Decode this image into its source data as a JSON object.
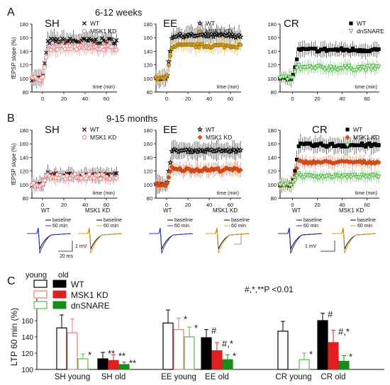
{
  "figure": {
    "panel_labels": [
      "A",
      "B",
      "C"
    ],
    "row_a_group_label": "6-12 weeks",
    "row_b_group_label": "9-15 months",
    "y_axis_label": "fEPSP slope (%)",
    "x_axis_label": "time (min)"
  },
  "trace_insets": {
    "labels": {
      "wt": "WT",
      "msk1": "MSK1 KD",
      "baseline": "baseline",
      "sixty": "60 min",
      "scale_mv": "1 mV",
      "scale_ms": "20 ms"
    },
    "groups": [
      {
        "title": "WT",
        "color": "#2b3cc8",
        "mid": 2
      },
      {
        "title": "MSK1 KD",
        "color": "#d1a020",
        "mid": 2
      },
      {
        "title": "WT",
        "color": "#2b3cc8",
        "mid": 2
      },
      {
        "title": "MSK1 KD",
        "color": "#d1a020",
        "mid": 2
      },
      {
        "title": "WT",
        "color": "#1a2cc8",
        "mid": 2
      },
      {
        "title": "MSK1 KD",
        "color": "#d1a020",
        "mid": 2
      }
    ]
  },
  "colors": {
    "wt": "#000000",
    "msk1_ltp": "#e87a7a",
    "msk1_bar": "#e02020",
    "msk1_ee_old": "#e0501a",
    "dnsnare_ltp": "#55bb4a",
    "dnsnare_bar": "#1a8c1a"
  },
  "chart_data": [
    {
      "type": "line",
      "panel": "A",
      "title": "SH",
      "x_range": [
        -10,
        70
      ],
      "ylim": [
        80,
        180
      ],
      "yticks": [
        80,
        100,
        120,
        140,
        160,
        180
      ],
      "xticks": [
        0,
        20,
        40,
        60
      ],
      "series": [
        {
          "name": "WT",
          "marker": "x",
          "color": "#000000",
          "baseline": 100,
          "plateau": 155,
          "noise": 6,
          "err": 12
        },
        {
          "name": "MSK1 KD",
          "marker": "circle-open",
          "color": "#e87a7a",
          "baseline": 100,
          "plateau": 145,
          "noise": 5,
          "err": 10
        }
      ]
    },
    {
      "type": "line",
      "panel": "A",
      "title": "EE",
      "x_range": [
        -10,
        70
      ],
      "ylim": [
        80,
        180
      ],
      "yticks": [
        80,
        100,
        120,
        140,
        160,
        180
      ],
      "xticks": [
        0,
        20,
        40,
        60
      ],
      "series": [
        {
          "name": "WT",
          "marker": "star",
          "color": "#000000",
          "baseline": 100,
          "plateau": 163,
          "noise": 4,
          "err": 12
        },
        {
          "name": "MSK1 KD",
          "marker": "circle-filled",
          "color": "#d9a020",
          "baseline": 100,
          "plateau": 148,
          "noise": 4,
          "err": 10
        }
      ]
    },
    {
      "type": "line",
      "panel": "A",
      "title": "CR",
      "x_range": [
        -10,
        70
      ],
      "ylim": [
        80,
        180
      ],
      "yticks": [
        80,
        100,
        120,
        140,
        160,
        180
      ],
      "xticks": [
        0,
        20,
        40,
        60
      ],
      "series": [
        {
          "name": "WT",
          "marker": "square",
          "color": "#000000",
          "baseline": 100,
          "plateau": 142,
          "noise": 4,
          "err": 10
        },
        {
          "name": "dnSNARE",
          "marker": "triangle-down",
          "color": "#55bb4a",
          "baseline": 100,
          "plateau": 115,
          "noise": 5,
          "err": 9
        }
      ]
    },
    {
      "type": "line",
      "panel": "B",
      "title": "SH",
      "x_range": [
        -10,
        70
      ],
      "ylim": [
        80,
        180
      ],
      "yticks": [
        80,
        100,
        120,
        140,
        160,
        180
      ],
      "xticks": [
        0,
        20,
        40,
        60
      ],
      "series": [
        {
          "name": "WT",
          "marker": "x",
          "color": "#000000",
          "baseline": 100,
          "plateau": 114,
          "noise": 4,
          "err": 9
        },
        {
          "name": "MSK1 KD",
          "marker": "circle-open",
          "color": "#e87a7a",
          "baseline": 100,
          "plateau": 112,
          "noise": 5,
          "err": 9
        }
      ]
    },
    {
      "type": "line",
      "panel": "B",
      "title": "EE",
      "x_range": [
        -10,
        70
      ],
      "ylim": [
        80,
        180
      ],
      "yticks": [
        80,
        100,
        120,
        140,
        160,
        180
      ],
      "xticks": [
        0,
        20,
        40,
        60
      ],
      "series": [
        {
          "name": "WT",
          "marker": "star",
          "color": "#000000",
          "baseline": 100,
          "plateau": 150,
          "noise": 3,
          "err": 12
        },
        {
          "name": "MSK1 KD",
          "marker": "diamond",
          "color": "#e0501a",
          "baseline": 100,
          "plateau": 122,
          "noise": 4,
          "err": 9
        }
      ]
    },
    {
      "type": "line",
      "panel": "B",
      "title": "CR",
      "x_range": [
        -10,
        70
      ],
      "ylim": [
        80,
        180
      ],
      "yticks": [
        80,
        100,
        120,
        140,
        160,
        180
      ],
      "xticks": [
        0,
        20,
        40,
        60
      ],
      "series": [
        {
          "name": "WT",
          "marker": "square",
          "color": "#000000",
          "baseline": 100,
          "plateau": 158,
          "noise": 4,
          "err": 11
        },
        {
          "name": "MSK1 KD",
          "marker": "diamond",
          "color": "#e0501a",
          "baseline": 100,
          "plateau": 133,
          "noise": 3,
          "err": 8
        },
        {
          "name": "dnSNARE",
          "marker": "triangle-down",
          "color": "#55bb4a",
          "baseline": 100,
          "plateau": 112,
          "noise": 3,
          "err": 8
        }
      ]
    },
    {
      "type": "bar",
      "panel": "C",
      "ylabel": "LTP 60 min (%)",
      "ylim": [
        100,
        180
      ],
      "yticks": [
        100,
        120,
        140,
        160
      ],
      "significance_note": "#,*,**P <0.01",
      "legend": {
        "young": "young",
        "old": "old",
        "entries": [
          "WT",
          "MSK1 KD",
          "dnSNARE"
        ]
      },
      "groups": [
        {
          "label": "SH young",
          "bars": [
            {
              "series": "WT",
              "value": 151,
              "err": 16,
              "fill": "open",
              "sig": ""
            },
            {
              "series": "MSK1 KD",
              "value": 145,
              "err": 17,
              "fill": "open",
              "sig": ""
            },
            {
              "series": "dnSNARE",
              "value": 113,
              "err": 6,
              "fill": "open",
              "sig": "*"
            }
          ]
        },
        {
          "label": "SH old",
          "bars": [
            {
              "series": "WT",
              "value": 113,
              "err": 8,
              "fill": "filled",
              "sig": "**"
            },
            {
              "series": "MSK1 KD",
              "value": 111,
              "err": 7,
              "fill": "filled",
              "sig": "**"
            },
            {
              "series": "dnSNARE",
              "value": 106,
              "err": 3,
              "fill": "filled",
              "sig": "**"
            }
          ]
        },
        {
          "label": "EE young",
          "bars": [
            {
              "series": "WT",
              "value": 157,
              "err": 16,
              "fill": "open",
              "sig": ""
            },
            {
              "series": "MSK1 KD",
              "value": 149,
              "err": 14,
              "fill": "open",
              "sig": "*"
            },
            {
              "series": "dnSNARE",
              "value": 140,
              "err": 12,
              "fill": "open",
              "sig": "*"
            }
          ]
        },
        {
          "label": "EE old",
          "bars": [
            {
              "series": "WT",
              "value": 139,
              "err": 10,
              "fill": "filled",
              "sig": "#"
            },
            {
              "series": "MSK1 KD",
              "value": 123,
              "err": 10,
              "fill": "filled",
              "sig": "#,*"
            },
            {
              "series": "dnSNARE",
              "value": 112,
              "err": 6,
              "fill": "filled",
              "sig": "*"
            }
          ]
        },
        {
          "label": "CR young",
          "bars": [
            {
              "series": "WT",
              "value": 147,
              "err": 12,
              "fill": "open",
              "sig": ""
            },
            {
              "series": "dnSNARE",
              "value": 112,
              "err": 8,
              "fill": "open",
              "sig": "*"
            }
          ]
        },
        {
          "label": "CR old",
          "bars": [
            {
              "series": "WT",
              "value": 160,
              "err": 9,
              "fill": "filled",
              "sig": "#"
            },
            {
              "series": "MSK1 KD",
              "value": 133,
              "err": 15,
              "fill": "filled",
              "sig": "#,*"
            },
            {
              "series": "dnSNARE",
              "value": 110,
              "err": 7,
              "fill": "filled",
              "sig": "*"
            }
          ]
        }
      ]
    }
  ]
}
